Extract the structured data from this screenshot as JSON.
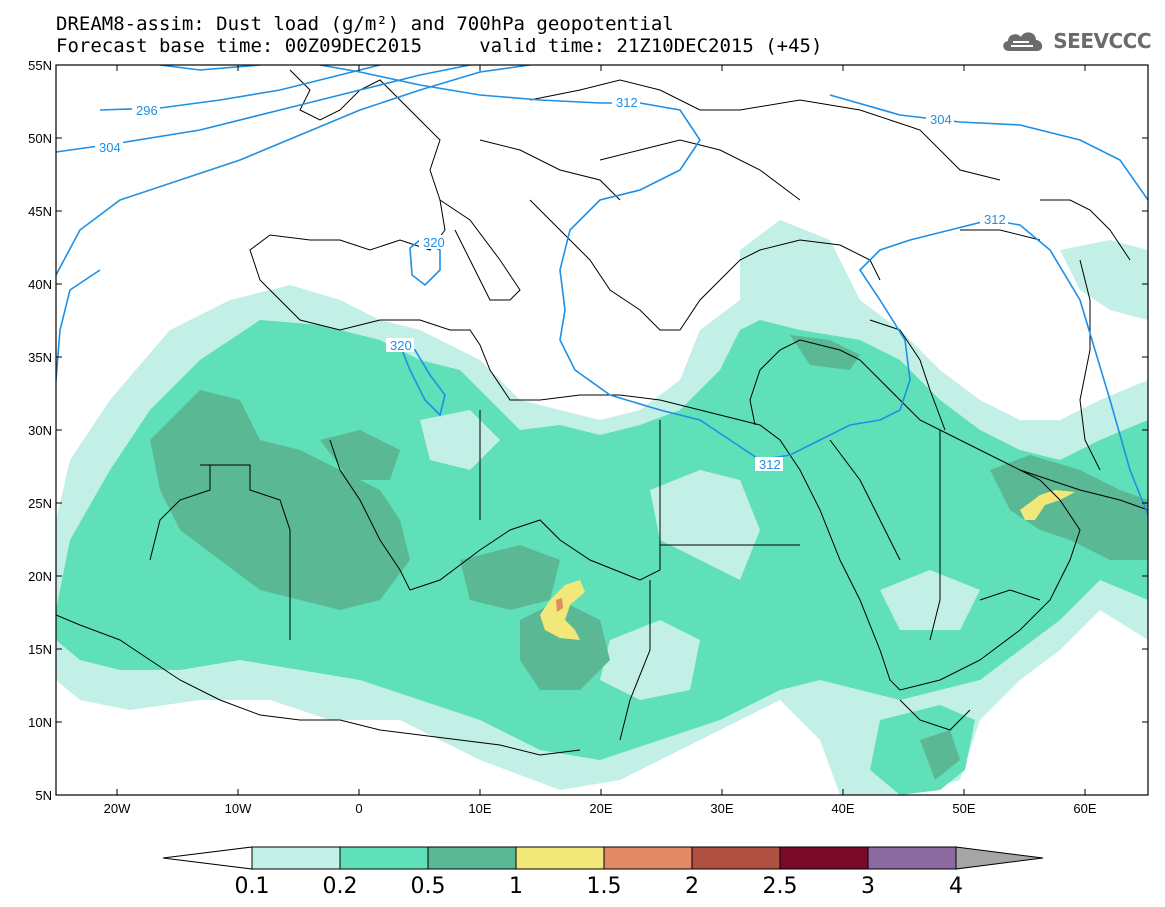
{
  "title": {
    "line1": "DREAM8-assim: Dust load (g/m²) and 700hPa geopotential",
    "line2": "Forecast base time: 00Z09DEC2015     valid time: 21Z10DEC2015 (+45)"
  },
  "logo": {
    "text": "SEEVCCC",
    "icon": "cloud-icon"
  },
  "map": {
    "lat_labels": [
      "55N",
      "50N",
      "45N",
      "40N",
      "35N",
      "30N",
      "25N",
      "20N",
      "15N",
      "10N",
      "5N"
    ],
    "lon_labels": [
      "20W",
      "10W",
      "0",
      "10E",
      "20E",
      "30E",
      "40E",
      "50E",
      "60E"
    ],
    "geopotential_contour_labels": [
      "296",
      "304",
      "312",
      "320",
      "320",
      "312",
      "304",
      "312"
    ]
  },
  "colorbar": {
    "levels": [
      "0.1",
      "0.2",
      "0.5",
      "1",
      "1.5",
      "2",
      "2.5",
      "3",
      "4"
    ],
    "colors": [
      "#ffffff",
      "#c2efe6",
      "#5fe0b8",
      "#5ab894",
      "#f2e87a",
      "#e28a66",
      "#b05040",
      "#7a0a2a",
      "#8a6aa0",
      "#a6a6a6"
    ]
  },
  "colors": {
    "dust_0_1": "#c2efe6",
    "dust_0_2": "#5fe0b8",
    "dust_0_5": "#5ab894",
    "dust_1": "#f2e87a",
    "dust_1_5": "#e28a66",
    "contour": "#1e90e6"
  }
}
